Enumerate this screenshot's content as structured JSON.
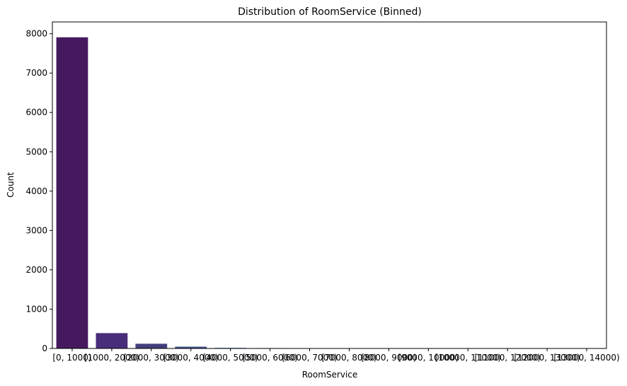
{
  "chart_data": {
    "type": "bar",
    "title": "Distribution of RoomService (Binned)",
    "xlabel": "RoomService",
    "ylabel": "Count",
    "ylim": [
      0,
      8300
    ],
    "yticks": [
      0,
      1000,
      2000,
      3000,
      4000,
      5000,
      6000,
      7000,
      8000
    ],
    "categories": [
      "[0, 1000)",
      "[1000, 2000)",
      "[2000, 3000)",
      "[3000, 4000)",
      "[4000, 5000)",
      "[5000, 6000)",
      "[6000, 7000)",
      "[7000, 8000)",
      "[8000, 9000)",
      "[9000, 10000)",
      "[10000, 11000)",
      "[11000, 12000)",
      "[12000, 13000)",
      "[13000, 14000)"
    ],
    "values": [
      7910,
      390,
      120,
      45,
      15,
      10,
      8,
      3,
      5,
      2,
      1,
      1,
      1,
      1
    ],
    "colors": [
      "#45195e",
      "#472d7a",
      "#453e7d",
      "#3e4f8b",
      "#375f8d",
      "#306e8e",
      "#2b7d8e",
      "#248c8c",
      "#1f9a89",
      "#25a881",
      "#3bb576",
      "#58c265",
      "#7bcf52",
      "#a4d83c"
    ],
    "grid": false,
    "legend": "none"
  }
}
